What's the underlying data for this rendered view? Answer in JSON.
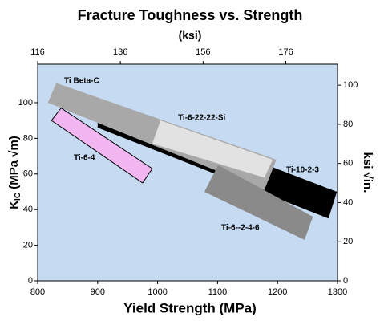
{
  "chart_data": {
    "type": "region",
    "title": "Fracture Toughness vs. Strength",
    "x2_label": "(ksi)",
    "x_label": "Yield Strength (MPa)",
    "y_label_main": "K",
    "y_label_sub": "IC",
    "y_label_rest": " (MPa √m)",
    "y2_label": "ksi √in.",
    "xlim": [
      800,
      1300
    ],
    "xticks": [
      800,
      900,
      1000,
      1100,
      1200,
      1300
    ],
    "x2lim": [
      116,
      188.5
    ],
    "x2ticks": [
      116,
      136,
      156,
      176
    ],
    "ylim": [
      0,
      121.6
    ],
    "yticks": [
      0,
      20,
      40,
      60,
      80,
      100
    ],
    "y2lim": [
      0,
      110.7
    ],
    "y2ticks": [
      0,
      20,
      40,
      60,
      80,
      100
    ],
    "background": "#c6dbf2",
    "regions": [
      {
        "name": "Ti-10-2-3",
        "color": "#000000",
        "x": [
          900,
          924,
          1198,
          1299,
          1285,
          900
        ],
        "y": [
          89,
          100,
          63,
          50,
          35,
          86
        ]
      },
      {
        "name": "Ti Beta-C",
        "color": "#a8a8a8",
        "x": [
          831,
          1198,
          1178,
          817
        ],
        "y": [
          111,
          68,
          51,
          100
        ]
      },
      {
        "name": "Ti-6-22-22-Si",
        "color": "#e2e2e2",
        "x": [
          1005,
          1192,
          1178,
          991
        ],
        "y": [
          90,
          68,
          58,
          77
        ]
      },
      {
        "name": "Ti-6--2-4-6",
        "color": "#8a8a8a",
        "x": [
          1101,
          1259,
          1245,
          1078
        ],
        "y": [
          65,
          36,
          23,
          50
        ]
      },
      {
        "name": "Ti-6-4",
        "color": "#f2b6f0",
        "x": [
          839,
          991,
          975,
          823
        ],
        "y": [
          97,
          63,
          55,
          90
        ]
      }
    ]
  }
}
